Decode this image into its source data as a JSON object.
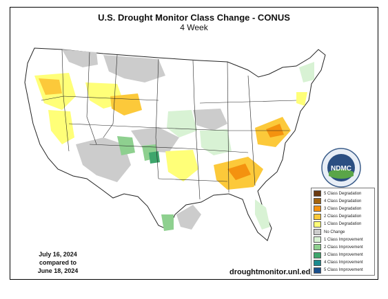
{
  "title": "U.S. Drought Monitor Class Change - CONUS",
  "subtitle": "4 Week",
  "date_line1": "July 16, 2024",
  "date_line2": "compared to",
  "date_line3": "June 18, 2024",
  "url": "droughtmonitor.unl.edu",
  "logo": {
    "text": "NDMC",
    "ring_text": "NATIONAL DROUGHT MITIGATION CENTER"
  },
  "legend": [
    {
      "label": "5 Class Degradation",
      "color": "#6b3a10"
    },
    {
      "label": "4 Class Degradation",
      "color": "#a3640f"
    },
    {
      "label": "3 Class Degradation",
      "color": "#f4920f"
    },
    {
      "label": "2 Class Degradation",
      "color": "#fcc93a"
    },
    {
      "label": "1 Class Degradation",
      "color": "#ffff78"
    },
    {
      "label": "No Change",
      "color": "#cccccc"
    },
    {
      "label": "1 Class Improvement",
      "color": "#d8f2d4"
    },
    {
      "label": "2 Class Improvement",
      "color": "#8ed08f"
    },
    {
      "label": "3 Class Improvement",
      "color": "#3ea66c"
    },
    {
      "label": "4 Class Improvement",
      "color": "#1b8a8e"
    },
    {
      "label": "5 Class Improvement",
      "color": "#1a4f8c"
    }
  ]
}
